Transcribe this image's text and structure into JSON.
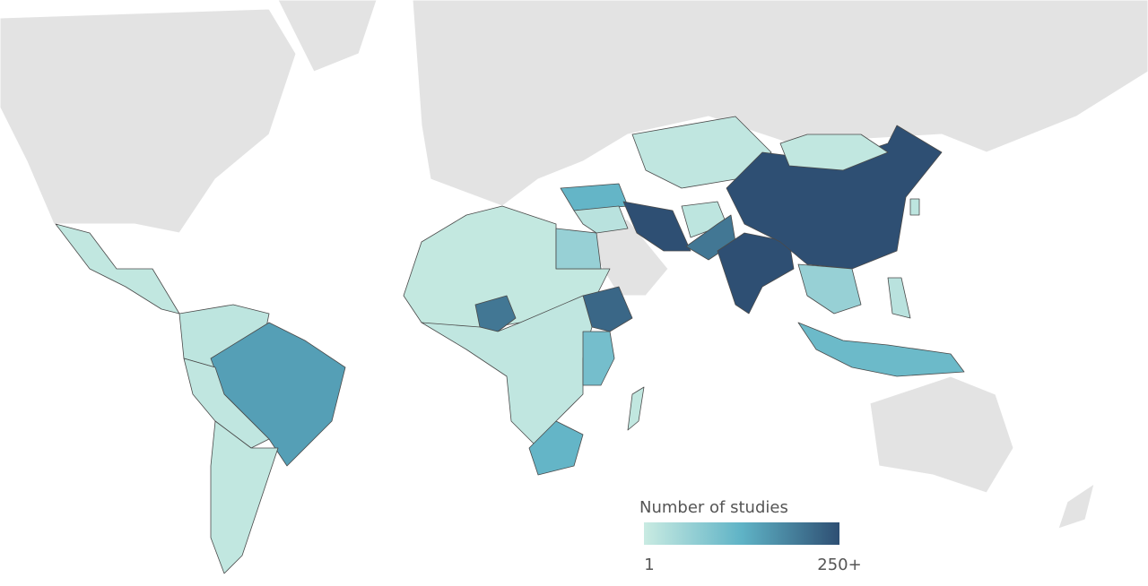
{
  "legend": {
    "title": "Number of studies",
    "ticks": [
      1,
      {
        "value": 250,
        "label": "250+"
      }
    ],
    "colors": [
      "#c9ebe2",
      "#5fb3c6",
      "#2e4f73"
    ]
  },
  "map": {
    "values": [
      10,
      15,
      150,
      12,
      10,
      8,
      60,
      200,
      220,
      12,
      100,
      120,
      10,
      120,
      20,
      250,
      12,
      15,
      200,
      250,
      250,
      10,
      60,
      110,
      20,
      15
    ]
  }
}
